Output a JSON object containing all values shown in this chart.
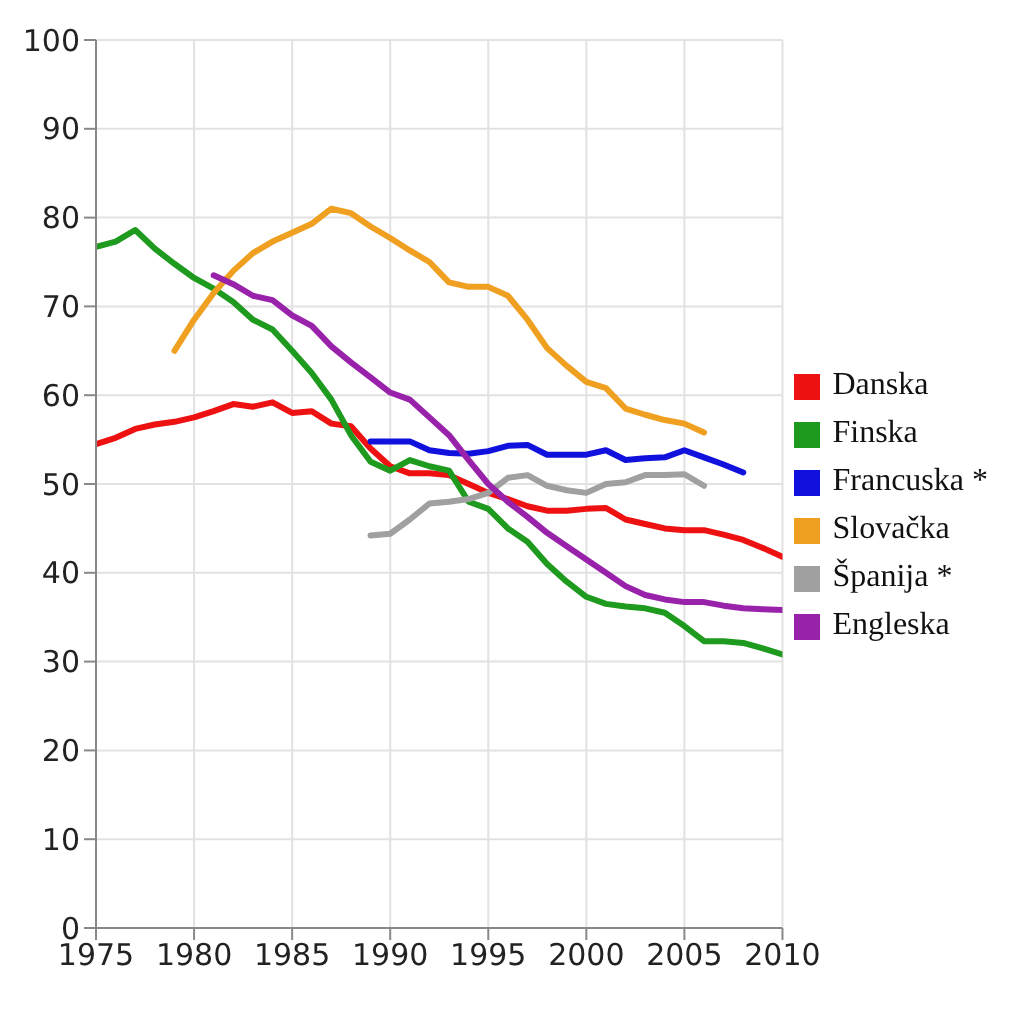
{
  "chart_data": {
    "type": "line",
    "x": [
      1975,
      1976,
      1977,
      1978,
      1979,
      1980,
      1981,
      1982,
      1983,
      1984,
      1985,
      1986,
      1987,
      1988,
      1989,
      1990,
      1991,
      1992,
      1993,
      1994,
      1995,
      1996,
      1997,
      1998,
      1999,
      2000,
      2001,
      2002,
      2003,
      2004,
      2005,
      2006,
      2007,
      2008,
      2009,
      2010
    ],
    "series": [
      {
        "name": "Danska",
        "color": "#ee1111",
        "values": [
          54.5,
          55.2,
          56.2,
          56.7,
          57,
          57.5,
          58.2,
          59,
          58.7,
          59.2,
          58,
          58.2,
          56.8,
          56.5,
          54,
          52,
          51.2,
          51.2,
          51,
          50,
          49,
          48.3,
          47.5,
          47,
          47,
          47.2,
          47.3,
          46,
          45.5,
          45,
          44.8,
          44.8,
          44.3,
          43.7,
          42.8,
          41.8
        ]
      },
      {
        "name": "Finska",
        "color": "#1e9a1e",
        "values": [
          76.7,
          77.3,
          78.6,
          76.5,
          74.8,
          73.2,
          72,
          70.5,
          68.5,
          67.4,
          65,
          62.5,
          59.5,
          55.5,
          52.5,
          51.5,
          52.7,
          52,
          51.5,
          48,
          47.2,
          45,
          43.5,
          41,
          39,
          37.3,
          36.5,
          36.2,
          36,
          35.5,
          34,
          32.3,
          32.3,
          32.1,
          31.5,
          30.8
        ]
      },
      {
        "name": "Francuska *",
        "color": "#1111dd",
        "values": [
          null,
          null,
          null,
          null,
          null,
          null,
          null,
          null,
          null,
          null,
          null,
          null,
          null,
          null,
          54.8,
          54.8,
          54.8,
          53.8,
          53.5,
          53.4,
          53.7,
          54.3,
          54.4,
          53.3,
          53.3,
          53.3,
          53.8,
          52.7,
          52.9,
          53,
          53.8,
          53,
          52.2,
          51.3,
          null,
          null
        ]
      },
      {
        "name": "Slovačka",
        "color": "#f0a020",
        "values": [
          null,
          null,
          null,
          null,
          65,
          68.5,
          71.5,
          74,
          76,
          77.3,
          78.3,
          79.3,
          81,
          80.5,
          79,
          77.7,
          76.3,
          75,
          72.7,
          72.2,
          72.2,
          71.2,
          68.5,
          65.3,
          63.3,
          61.5,
          60.8,
          58.5,
          57.8,
          57.2,
          56.8,
          55.8,
          null,
          null,
          null,
          null
        ]
      },
      {
        "name": "Španija *",
        "color": "#a0a0a0",
        "values": [
          null,
          null,
          null,
          null,
          null,
          null,
          null,
          null,
          null,
          null,
          null,
          null,
          null,
          null,
          44.2,
          44.4,
          46,
          47.8,
          48,
          48.3,
          49,
          50.7,
          51,
          49.8,
          49.3,
          49,
          50,
          50.2,
          51,
          51,
          51.1,
          49.8,
          null,
          null,
          null,
          null
        ]
      },
      {
        "name": "Engleska",
        "color": "#9922aa",
        "values": [
          null,
          null,
          null,
          null,
          null,
          null,
          73.5,
          72.5,
          71.2,
          70.7,
          69,
          67.8,
          65.5,
          63.7,
          62,
          60.3,
          59.5,
          57.5,
          55.5,
          52.7,
          50,
          48,
          46.3,
          44.5,
          43,
          41.5,
          40,
          38.5,
          37.5,
          37,
          36.7,
          36.7,
          36.3,
          36,
          35.9,
          35.8
        ]
      }
    ],
    "xlim": [
      1975,
      2010
    ],
    "xticks": [
      1975,
      1980,
      1985,
      1990,
      1995,
      2000,
      2005,
      2010
    ],
    "ylim": [
      0,
      100
    ],
    "yticks": [
      0,
      10,
      20,
      30,
      40,
      50,
      60,
      70,
      80,
      90,
      100
    ],
    "grid": true,
    "legend": "right",
    "marker": "none",
    "line_style": "solid"
  }
}
